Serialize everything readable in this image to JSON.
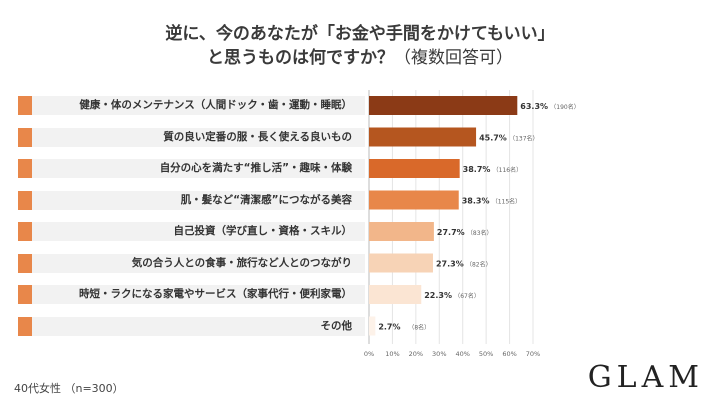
{
  "title": {
    "line1": "逆に、今のあなたが「お金や手間をかけてもいい」",
    "line2": "と思うものは何ですか？",
    "line2_sub": "（複数回答可）"
  },
  "footer": {
    "sample": "40代女性 （n=300）"
  },
  "brand": {
    "logo": "GLAM"
  },
  "chart_data": {
    "type": "bar",
    "orientation": "horizontal",
    "categories": [
      "健康・体のメンテナンス（人間ドック・歯・運動・睡眠）",
      "質の良い定番の服・長く使える良いもの",
      "自分の心を満たす“推し活”・趣味・体験",
      "肌・髪など“清潔感”につながる美容",
      "自己投資（学び直し・資格・スキル）",
      "気の合う人との食事・旅行など人とのつながり",
      "時短・ラクになる家電やサービス（家事代行・便利家電）",
      "その他"
    ],
    "values": [
      63.3,
      45.7,
      38.7,
      38.3,
      27.7,
      27.3,
      22.3,
      2.7
    ],
    "value_labels": [
      "63.3%",
      "45.7%",
      "38.7%",
      "38.3%",
      "27.7%",
      "27.3%",
      "22.3%",
      "2.7%"
    ],
    "counts": [
      "（190名）",
      "（137名）",
      "（116名）",
      "（115名）",
      "（83名）",
      "（82名）",
      "（67名）",
      "（8名）"
    ],
    "colors": [
      "#8b3a16",
      "#b5561f",
      "#d9692a",
      "#e8874a",
      "#f2b68a",
      "#f7d3b6",
      "#fbe5d3",
      "#fdf2e9"
    ],
    "chip_color": "#e8874a",
    "xlim": [
      0,
      70
    ],
    "xticks": [
      "0%",
      "10%",
      "20%",
      "30%",
      "40%",
      "50%",
      "60%",
      "70%"
    ],
    "grid": true
  }
}
